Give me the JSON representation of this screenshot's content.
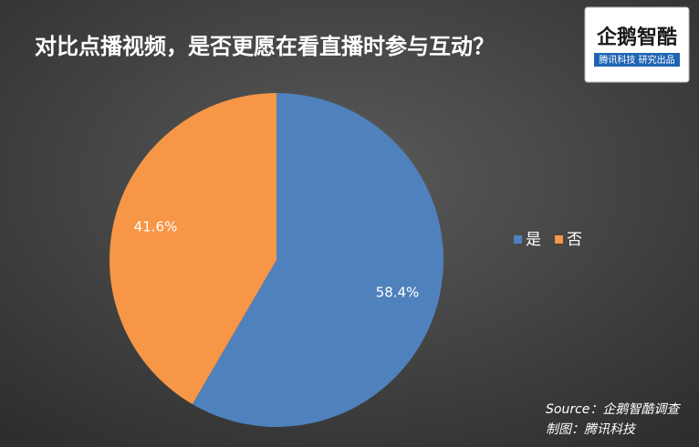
{
  "chart_data": {
    "type": "pie",
    "title": "对比点播视频，是否更愿在看直播时参与互动？",
    "categories": [
      "是",
      "否"
    ],
    "values": [
      58.4,
      41.6
    ],
    "value_labels": [
      "58.4%",
      "41.6%"
    ],
    "colors": [
      "#4f81bd",
      "#f79646"
    ],
    "legend": "right"
  },
  "logo": {
    "name": "企鹅智酷",
    "tagline": "腾讯科技 研究出品"
  },
  "source": "Source：企鹅智酷调查",
  "credit": "制图：腾讯科技"
}
